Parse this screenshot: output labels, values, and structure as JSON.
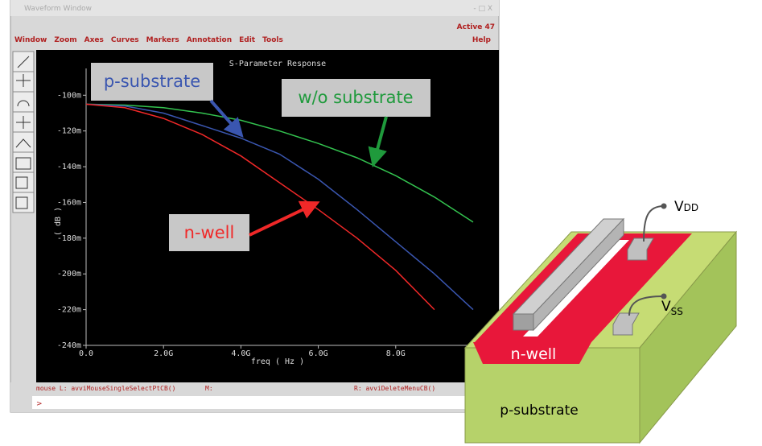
{
  "window": {
    "title": "Waveform Window",
    "controls": "- □ X",
    "status": "Active  47",
    "menu": [
      "Window",
      "Zoom",
      "Axes",
      "Curves",
      "Markers",
      "Annotation",
      "Edit",
      "Tools"
    ],
    "help": "Help"
  },
  "chart_data": {
    "type": "line",
    "title": "S-Parameter Response",
    "x_label": "freq ( Hz )",
    "y_label": "( dB )",
    "x": [
      0,
      1000000000,
      2000000000,
      3000000000,
      4000000000,
      5000000000,
      6000000000,
      7000000000,
      8000000000,
      9000000000,
      10000000000
    ],
    "series": [
      {
        "name": "w/o substrate",
        "color": "#33c24f",
        "values": [
          -0.105,
          -0.1055,
          -0.107,
          -0.11,
          -0.114,
          -0.12,
          -0.127,
          -0.135,
          -0.145,
          -0.157,
          -0.171
        ]
      },
      {
        "name": "p-substrate",
        "color": "#3a56b0",
        "values": [
          -0.105,
          -0.106,
          -0.11,
          -0.117,
          -0.124,
          -0.133,
          -0.147,
          -0.164,
          -0.182,
          -0.2,
          -0.22
        ]
      },
      {
        "name": "n-well",
        "color": "#f02828",
        "values": [
          -0.105,
          -0.107,
          -0.113,
          -0.122,
          -0.134,
          -0.149,
          -0.164,
          -0.18,
          -0.198,
          -0.22,
          null
        ]
      }
    ],
    "xlim": [
      0,
      10000000000
    ],
    "ylim": [
      -0.24,
      -0.085
    ],
    "xticks": [
      {
        "value": 0,
        "label": "0.0"
      },
      {
        "value": 2000000000,
        "label": "2.0G"
      },
      {
        "value": 4000000000,
        "label": "4.0G"
      },
      {
        "value": 6000000000,
        "label": "6.0G"
      },
      {
        "value": 8000000000,
        "label": "8.0G"
      }
    ],
    "yticks": [
      {
        "value": -0.1,
        "label": "-100m"
      },
      {
        "value": -0.12,
        "label": "-120m"
      },
      {
        "value": -0.14,
        "label": "-140m"
      },
      {
        "value": -0.16,
        "label": "-160m"
      },
      {
        "value": -0.18,
        "label": "-180m"
      },
      {
        "value": -0.2,
        "label": "-200m"
      },
      {
        "value": -0.22,
        "label": "-220m"
      },
      {
        "value": -0.24,
        "label": "-240m"
      }
    ]
  },
  "statusbar": {
    "left": "mouse L: avviMouseSingleSelectPtCB()",
    "middle": "M:",
    "right": "R: avviDeleteMenuCB()",
    "prompt": ">"
  },
  "diagram": {
    "vdd": {
      "main": "V",
      "sub": "DD"
    },
    "vss": {
      "main": "V",
      "sub": "SS"
    },
    "nwell": "n-well",
    "substrate": "p-substrate"
  }
}
